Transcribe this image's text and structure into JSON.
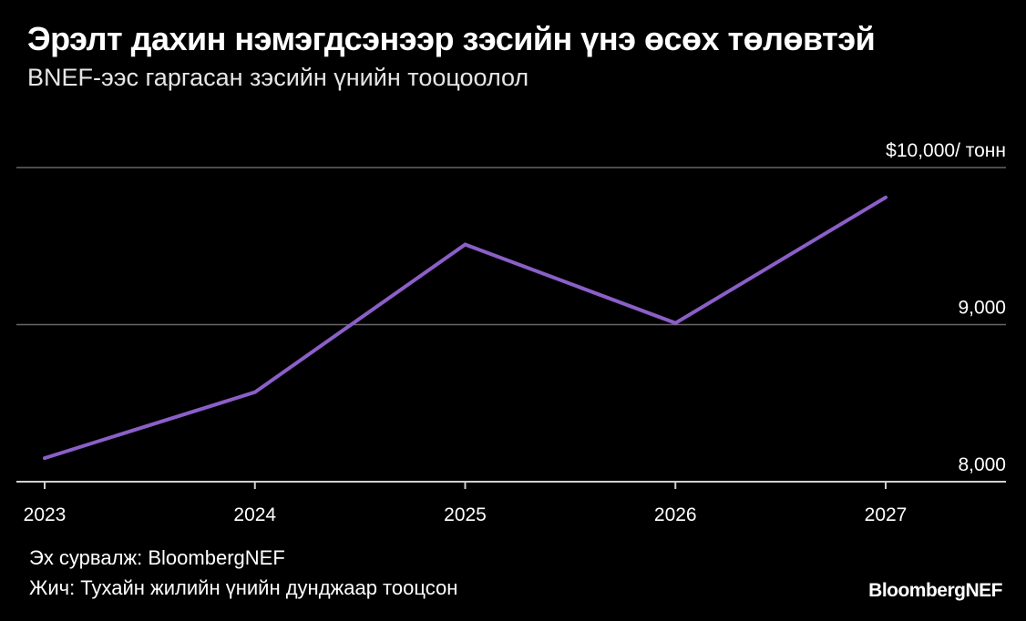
{
  "title": "Эрэлт дахин нэмэгдсэнээр зэсийн үнэ өсөх төлөвтэй",
  "subtitle": "BNEF-ээс гаргасан зэсийн үнийн тооцоолол",
  "source": "Эх сурвалж: BloombergNEF",
  "note": "Жич: Тухайн жилийн үнийн дунджаар тооцсон",
  "brand": "BloombergNEF",
  "colors": {
    "background": "#000000",
    "line": "#8b5fc8",
    "grid": "#666666",
    "text": "#ffffff"
  },
  "chart_data": {
    "type": "line",
    "title": "Эрэлт дахин нэмэгдсэнээр зэсийн үнэ өсөх төлөвтэй",
    "subtitle": "BNEF-ээс гаргасан зэсийн үнийн тооцоолол",
    "x": [
      "2023",
      "2024",
      "2025",
      "2026",
      "2027"
    ],
    "series": [
      {
        "values": [
          8150,
          8570,
          9510,
          9010,
          9810
        ]
      }
    ],
    "ylim": [
      8000,
      10000
    ],
    "yticks": [
      {
        "value": 10000,
        "label": "$10,000/ тонн"
      },
      {
        "value": 9000,
        "label": "9,000"
      },
      {
        "value": 8000,
        "label": "8,000"
      }
    ],
    "grid": true,
    "legend": "none"
  }
}
